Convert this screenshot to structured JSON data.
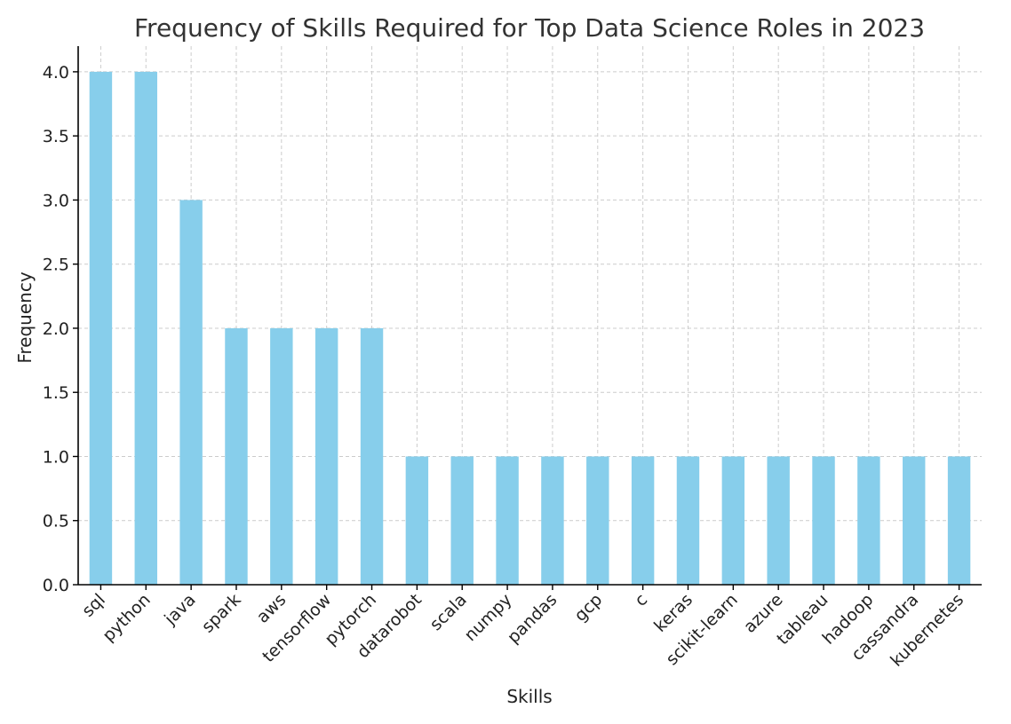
{
  "chart_data": {
    "type": "bar",
    "title": "Frequency of Skills Required for Top Data Science Roles in 2023",
    "xlabel": "Skills",
    "ylabel": "Frequency",
    "categories": [
      "sql",
      "python",
      "java",
      "spark",
      "aws",
      "tensorflow",
      "pytorch",
      "datarobot",
      "scala",
      "numpy",
      "pandas",
      "gcp",
      "c",
      "keras",
      "scikit-learn",
      "azure",
      "tableau",
      "hadoop",
      "cassandra",
      "kubernetes"
    ],
    "values": [
      4,
      4,
      3,
      2,
      2,
      2,
      2,
      1,
      1,
      1,
      1,
      1,
      1,
      1,
      1,
      1,
      1,
      1,
      1,
      1
    ],
    "ylim": [
      0,
      4.2
    ],
    "yticks": [
      "0.0",
      "0.5",
      "1.0",
      "1.5",
      "2.0",
      "2.5",
      "3.0",
      "3.5",
      "4.0"
    ],
    "grid": true,
    "bar_color": "#87CEEB"
  }
}
